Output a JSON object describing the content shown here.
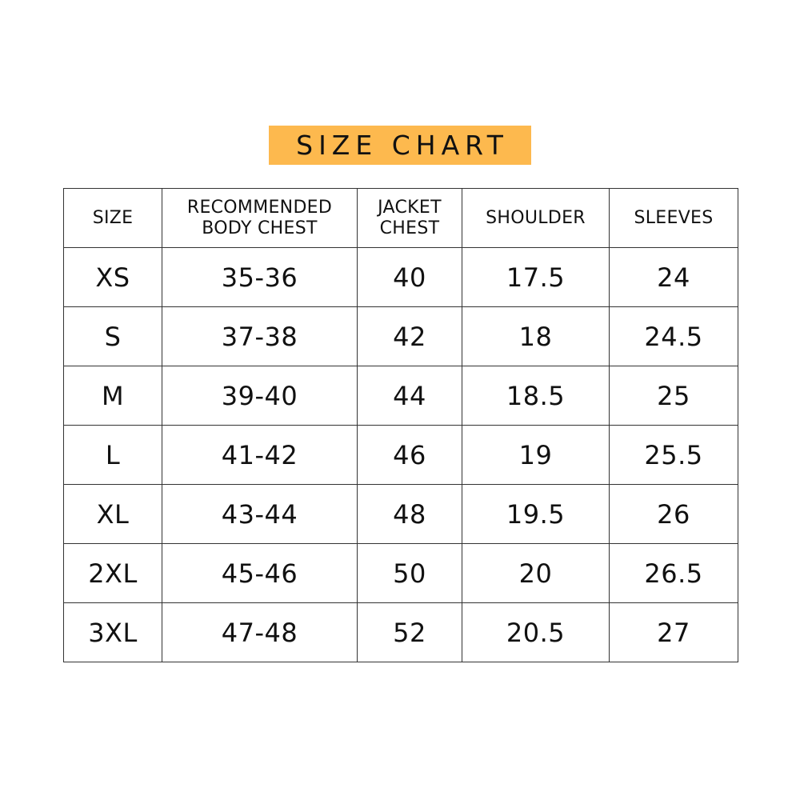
{
  "title": "SIZE CHART",
  "accent_color": "#fdb94e",
  "columns": [
    "SIZE",
    "RECOMMENDED BODY CHEST",
    "JACKET CHEST",
    "SHOULDER",
    "SLEEVES"
  ],
  "header_lines": [
    [
      "SIZE"
    ],
    [
      "RECOMMENDED",
      "BODY CHEST"
    ],
    [
      "JACKET",
      "CHEST"
    ],
    [
      "SHOULDER"
    ],
    [
      "SLEEVES"
    ]
  ],
  "rows": [
    [
      "XS",
      "35-36",
      "40",
      "17.5",
      "24"
    ],
    [
      "S",
      "37-38",
      "42",
      "18",
      "24.5"
    ],
    [
      "M",
      "39-40",
      "44",
      "18.5",
      "25"
    ],
    [
      "L",
      "41-42",
      "46",
      "19",
      "25.5"
    ],
    [
      "XL",
      "43-44",
      "48",
      "19.5",
      "26"
    ],
    [
      "2XL",
      "45-46",
      "50",
      "20",
      "26.5"
    ],
    [
      "3XL",
      "47-48",
      "52",
      "20.5",
      "27"
    ]
  ]
}
